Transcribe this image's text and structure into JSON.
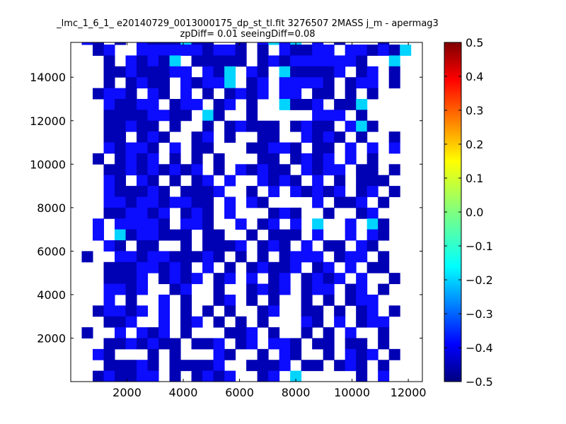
{
  "chart_data": {
    "type": "heatmap",
    "title": "_lmc_1_6_1_ e20140729_0013000175_dp_st_tl.fit 3276507 2MASS j_m - apermag3",
    "subtitle": "zpDiff= 0.01 seeingDiff=0.08",
    "xlabel": "",
    "ylabel": "",
    "xlim": [
      0,
      12500
    ],
    "ylim": [
      0,
      15600
    ],
    "x_ticks": [
      2000,
      4000,
      6000,
      8000,
      10000,
      12000
    ],
    "y_ticks": [
      2000,
      4000,
      6000,
      8000,
      10000,
      12000,
      14000
    ],
    "colormap": "jet",
    "color_range": [
      -0.5,
      0.5
    ],
    "colorbar_ticks": [
      0.5,
      0.4,
      0.3,
      0.2,
      0.1,
      0.0,
      -0.1,
      -0.2,
      -0.3,
      -0.4,
      -0.5
    ],
    "colorbar_tick_labels": [
      "0.5",
      "0.4",
      "0.3",
      "0.2",
      "0.1",
      "0.0",
      "−0.1",
      "−0.2",
      "−0.3",
      "−0.4",
      "−0.5"
    ],
    "grid": false,
    "x_cell_size": 390,
    "y_cell_size": 500,
    "x_start": 0,
    "y_start": 0,
    "rows_top_to_bottom": [
      ".34.4.3444544..4.3535.3.4...4..",
      "..43..3333334334.4.34433.334345",
      "...4.34345.44444.4343333334..5.",
      "...44344433.345.34.544443.43.4.",
      "...4.4344.34335.43.33334.433.4.",
      "..4334.34.3.4.4343.33.44.4.4...",
      "...34433.433.43.4..5443.445....",
      "...44443344.54..4.....333.4....",
      "...44344.4..4.43444.4344.354...",
      "...44.434..43.4..44..3434.4..4.",
      "...34334.3.44...44334.44.3.3.3.",
      "..4.4343.4.4.4...44.4343.3.4...",
      "...443434343.4.34344.3433.44.4.",
      "...34.34.4.43.3..3434.3.4.444..",
      "...344434.4443..4.3.34343.43.4.",
      "...3343343344.3.34....3.443.4..",
      "...443343.434.3...434..4..43...",
      "..3.33334.334..3.43.3.5..3.54..",
      "..3.5433444.44..4.444.3..3.34..",
      "...34.44..4.4443.434.3.44.34...",
      ".4..3343344434.4.4.4333.433.4..",
      "...44433434.3.4.43443.43.3.44..",
      "...4443.4343.43.3.43.4343.3..4.",
      "...3343..43..4..4343.433.43.4..",
      "...3.4..3.4..43.4.4..4.4.433...",
      "..43343.3.4.4.4..43..44.4.43.4.",
      "...443..3.43.4.4.4...34.3.433..",
      ".4..3.343.4...443.4..4.4.3..4..",
      "...4434344.443.43.334.44.44.4..",
      "..34...4.4...34..4.34..4.343.4.",
      "...44434.44443..4443.44.434.4..",
      "..434433.4.4343..43.5.....4.3.."
    ]
  }
}
